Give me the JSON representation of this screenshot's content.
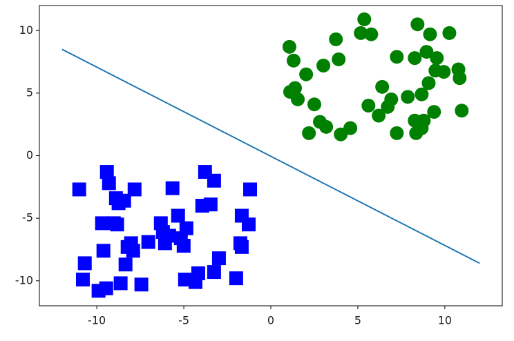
{
  "chart_data": {
    "type": "scatter",
    "xlim": [
      -13.3,
      13.3
    ],
    "ylim": [
      -12,
      12
    ],
    "xticks": [
      -10,
      -5,
      0,
      5,
      10
    ],
    "yticks": [
      -10,
      -5,
      0,
      5,
      10
    ],
    "grid": false,
    "series": [
      {
        "marker": "circle",
        "color": "#008000",
        "x": [
          1.07,
          1.31,
          2.03,
          1.11,
          1.39,
          1.55,
          2.5,
          2.19,
          2.82,
          3.18,
          3.02,
          3.74,
          3.9,
          4.02,
          4.57,
          5.37,
          5.17,
          5.77,
          5.61,
          6.2,
          6.4,
          6.72,
          6.92,
          7.24,
          7.24,
          7.87,
          8.27,
          8.43,
          8.27,
          8.35,
          8.67,
          8.67,
          8.79,
          8.95,
          9.15,
          9.07,
          9.38,
          9.54,
          9.46,
          9.94,
          10.26,
          10.78,
          10.85,
          10.97
        ],
        "values": [
          8.7,
          7.6,
          6.5,
          5.1,
          5.4,
          4.5,
          4.1,
          1.8,
          2.7,
          2.3,
          7.2,
          9.3,
          7.7,
          1.7,
          2.2,
          10.9,
          9.8,
          9.7,
          4.0,
          3.2,
          5.5,
          3.9,
          4.5,
          7.9,
          1.8,
          4.7,
          7.8,
          10.5,
          2.8,
          1.8,
          2.2,
          4.9,
          2.8,
          8.3,
          9.7,
          5.8,
          3.5,
          7.8,
          6.8,
          6.7,
          9.8,
          6.9,
          6.2,
          3.6
        ]
      },
      {
        "marker": "square",
        "color": "#0000ff",
        "x": [
          -11.01,
          -10.69,
          -10.8,
          -9.9,
          -9.46,
          -9.62,
          -9.7,
          -9.42,
          -9.3,
          -9.02,
          -8.83,
          -8.9,
          -8.75,
          -8.43,
          -8.63,
          -8.35,
          -8.23,
          -8.03,
          -7.83,
          -7.91,
          -7.44,
          -7.04,
          -6.32,
          -6.2,
          -6.08,
          -5.84,
          -5.65,
          -5.33,
          -5.17,
          -5.01,
          -4.85,
          -4.93,
          -4.33,
          -4.17,
          -3.94,
          -3.78,
          -3.46,
          -3.26,
          -3.26,
          -2.98,
          -1.99,
          -1.75,
          -1.67,
          -1.67,
          -1.27,
          -1.19
        ],
        "values": [
          -2.7,
          -8.6,
          -9.9,
          -10.8,
          -10.6,
          -7.6,
          -5.4,
          -1.3,
          -2.2,
          -5.4,
          -5.5,
          -3.4,
          -3.8,
          -3.6,
          -10.2,
          -8.7,
          -7.3,
          -7.0,
          -2.7,
          -7.6,
          -10.3,
          -6.9,
          -5.4,
          -6.1,
          -7.0,
          -6.4,
          -2.6,
          -4.8,
          -6.6,
          -7.2,
          -5.8,
          -9.9,
          -10.1,
          -9.4,
          -4.0,
          -1.3,
          -3.9,
          -2.0,
          -9.3,
          -8.2,
          -9.8,
          -7.0,
          -4.8,
          -7.3,
          -5.5,
          -2.7
        ]
      },
      {
        "marker": "line",
        "color": "#1f77b4",
        "x": [
          -12,
          12
        ],
        "values": [
          8.5,
          -8.6
        ]
      }
    ]
  }
}
